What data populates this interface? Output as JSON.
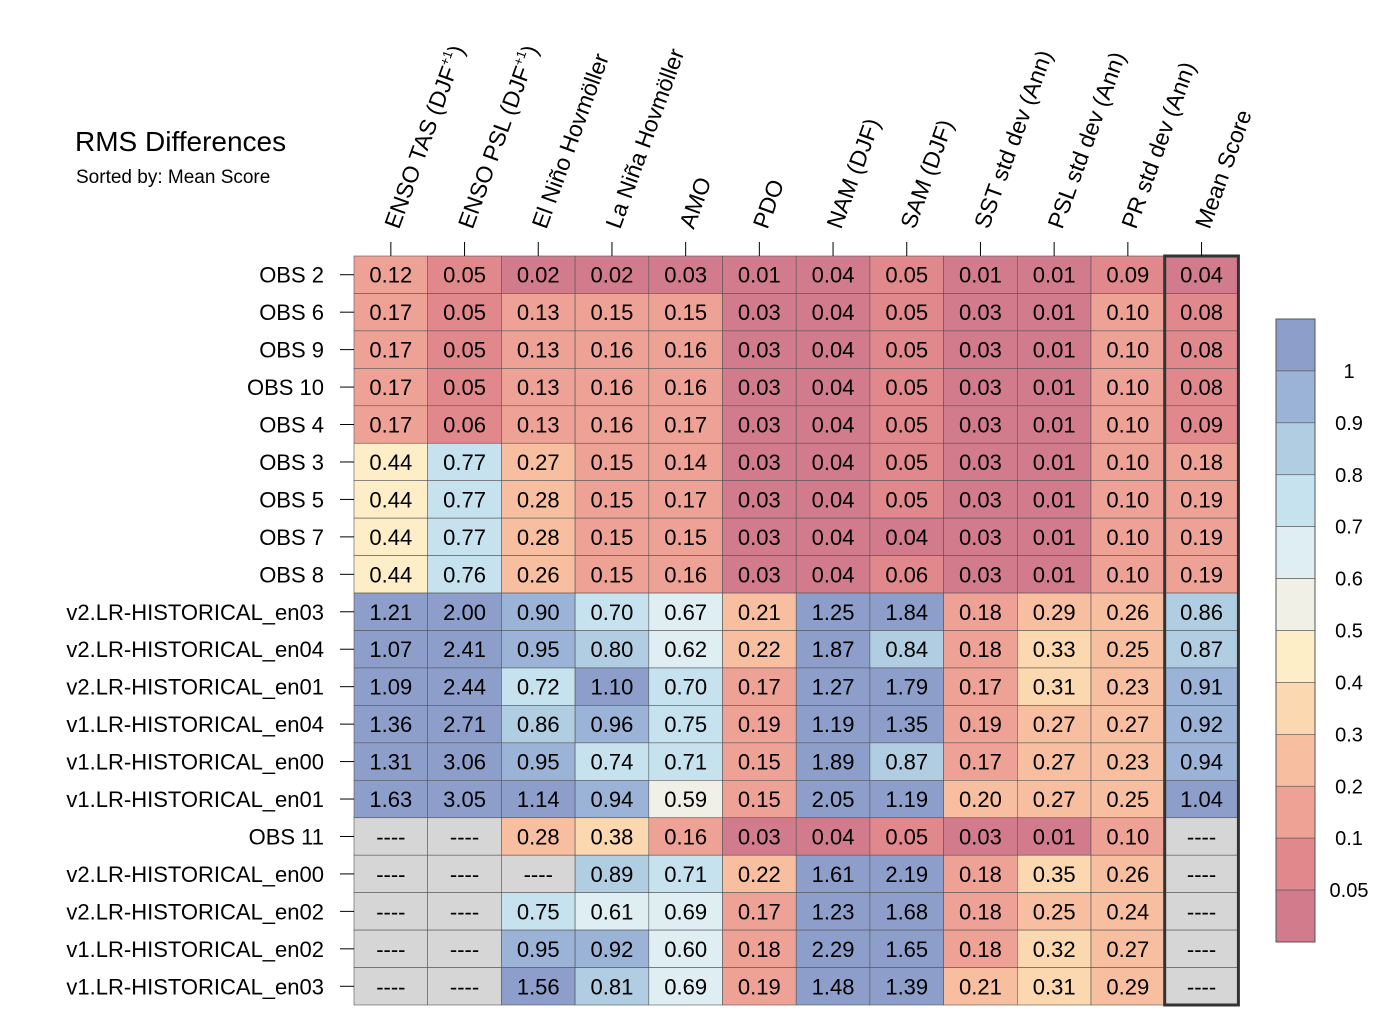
{
  "title": "RMS Differences",
  "subtitle": "Sorted by: Mean Score",
  "chart_data": {
    "type": "heatmap",
    "columns": [
      "ENSO TAS (DJF+1)",
      "ENSO PSL (DJF+1)",
      "El Niño Hovmöller",
      "La Niña Hovmöller",
      "AMO",
      "PDO",
      "NAM (DJF)",
      "SAM (DJF)",
      "SST std dev (Ann)",
      "PSL std dev (Ann)",
      "PR std dev (Ann)",
      "Mean Score"
    ],
    "rows": [
      "OBS 2",
      "OBS 6",
      "OBS 9",
      "OBS 10",
      "OBS 4",
      "OBS 3",
      "OBS 5",
      "OBS 7",
      "OBS 8",
      "v2.LR-HISTORICAL_en03",
      "v2.LR-HISTORICAL_en04",
      "v2.LR-HISTORICAL_en01",
      "v1.LR-HISTORICAL_en04",
      "v1.LR-HISTORICAL_en00",
      "v1.LR-HISTORICAL_en01",
      "OBS 11",
      "v2.LR-HISTORICAL_en00",
      "v2.LR-HISTORICAL_en02",
      "v1.LR-HISTORICAL_en02",
      "v1.LR-HISTORICAL_en03"
    ],
    "values": [
      [
        "0.12",
        "0.05",
        "0.02",
        "0.02",
        "0.03",
        "0.01",
        "0.04",
        "0.05",
        "0.01",
        "0.01",
        "0.09",
        "0.04"
      ],
      [
        "0.17",
        "0.05",
        "0.13",
        "0.15",
        "0.15",
        "0.03",
        "0.04",
        "0.05",
        "0.03",
        "0.01",
        "0.10",
        "0.08"
      ],
      [
        "0.17",
        "0.05",
        "0.13",
        "0.16",
        "0.16",
        "0.03",
        "0.04",
        "0.05",
        "0.03",
        "0.01",
        "0.10",
        "0.08"
      ],
      [
        "0.17",
        "0.05",
        "0.13",
        "0.16",
        "0.16",
        "0.03",
        "0.04",
        "0.05",
        "0.03",
        "0.01",
        "0.10",
        "0.08"
      ],
      [
        "0.17",
        "0.06",
        "0.13",
        "0.16",
        "0.17",
        "0.03",
        "0.04",
        "0.05",
        "0.03",
        "0.01",
        "0.10",
        "0.09"
      ],
      [
        "0.44",
        "0.77",
        "0.27",
        "0.15",
        "0.14",
        "0.03",
        "0.04",
        "0.05",
        "0.03",
        "0.01",
        "0.10",
        "0.18"
      ],
      [
        "0.44",
        "0.77",
        "0.28",
        "0.15",
        "0.17",
        "0.03",
        "0.04",
        "0.05",
        "0.03",
        "0.01",
        "0.10",
        "0.19"
      ],
      [
        "0.44",
        "0.77",
        "0.28",
        "0.15",
        "0.15",
        "0.03",
        "0.04",
        "0.04",
        "0.03",
        "0.01",
        "0.10",
        "0.19"
      ],
      [
        "0.44",
        "0.76",
        "0.26",
        "0.15",
        "0.16",
        "0.03",
        "0.04",
        "0.06",
        "0.03",
        "0.01",
        "0.10",
        "0.19"
      ],
      [
        "1.21",
        "2.00",
        "0.90",
        "0.70",
        "0.67",
        "0.21",
        "1.25",
        "1.84",
        "0.18",
        "0.29",
        "0.26",
        "0.86"
      ],
      [
        "1.07",
        "2.41",
        "0.95",
        "0.80",
        "0.62",
        "0.22",
        "1.87",
        "0.84",
        "0.18",
        "0.33",
        "0.25",
        "0.87"
      ],
      [
        "1.09",
        "2.44",
        "0.72",
        "1.10",
        "0.70",
        "0.17",
        "1.27",
        "1.79",
        "0.17",
        "0.31",
        "0.23",
        "0.91"
      ],
      [
        "1.36",
        "2.71",
        "0.86",
        "0.96",
        "0.75",
        "0.19",
        "1.19",
        "1.35",
        "0.19",
        "0.27",
        "0.27",
        "0.92"
      ],
      [
        "1.31",
        "3.06",
        "0.95",
        "0.74",
        "0.71",
        "0.15",
        "1.89",
        "0.87",
        "0.17",
        "0.27",
        "0.23",
        "0.94"
      ],
      [
        "1.63",
        "3.05",
        "1.14",
        "0.94",
        "0.59",
        "0.15",
        "2.05",
        "1.19",
        "0.20",
        "0.27",
        "0.25",
        "1.04"
      ],
      [
        "----",
        "----",
        "0.28",
        "0.38",
        "0.16",
        "0.03",
        "0.04",
        "0.05",
        "0.03",
        "0.01",
        "0.10",
        "----"
      ],
      [
        "----",
        "----",
        "----",
        "0.89",
        "0.71",
        "0.22",
        "1.61",
        "2.19",
        "0.18",
        "0.35",
        "0.26",
        "----"
      ],
      [
        "----",
        "----",
        "0.75",
        "0.61",
        "0.69",
        "0.17",
        "1.23",
        "1.68",
        "0.18",
        "0.25",
        "0.24",
        "----"
      ],
      [
        "----",
        "----",
        "0.95",
        "0.92",
        "0.60",
        "0.18",
        "2.29",
        "1.65",
        "0.18",
        "0.32",
        "0.27",
        "----"
      ],
      [
        "----",
        "----",
        "1.56",
        "0.81",
        "0.69",
        "0.19",
        "1.48",
        "1.39",
        "0.21",
        "0.31",
        "0.29",
        "----"
      ]
    ],
    "missing_value_label": "----",
    "colorbar": {
      "tick_labels": [
        "1",
        "0.9",
        "0.8",
        "0.7",
        "0.6",
        "0.5",
        "0.4",
        "0.3",
        "0.2",
        "0.1",
        "0.05"
      ],
      "levels": [
        0.05,
        0.1,
        0.2,
        0.3,
        0.4,
        0.5,
        0.6,
        0.7,
        0.8,
        0.9,
        1
      ],
      "colors": [
        "#d17b8d",
        "#e0888c",
        "#eea296",
        "#f7bfa0",
        "#fcd8b0",
        "#fdeec8",
        "#f0f0e6",
        "#deeef3",
        "#c5e2ee",
        "#b0cde2",
        "#9ab3d7",
        "#8d9ecb"
      ],
      "missing_color": "#d6d6d6"
    },
    "highlighted_column": "Mean Score"
  }
}
